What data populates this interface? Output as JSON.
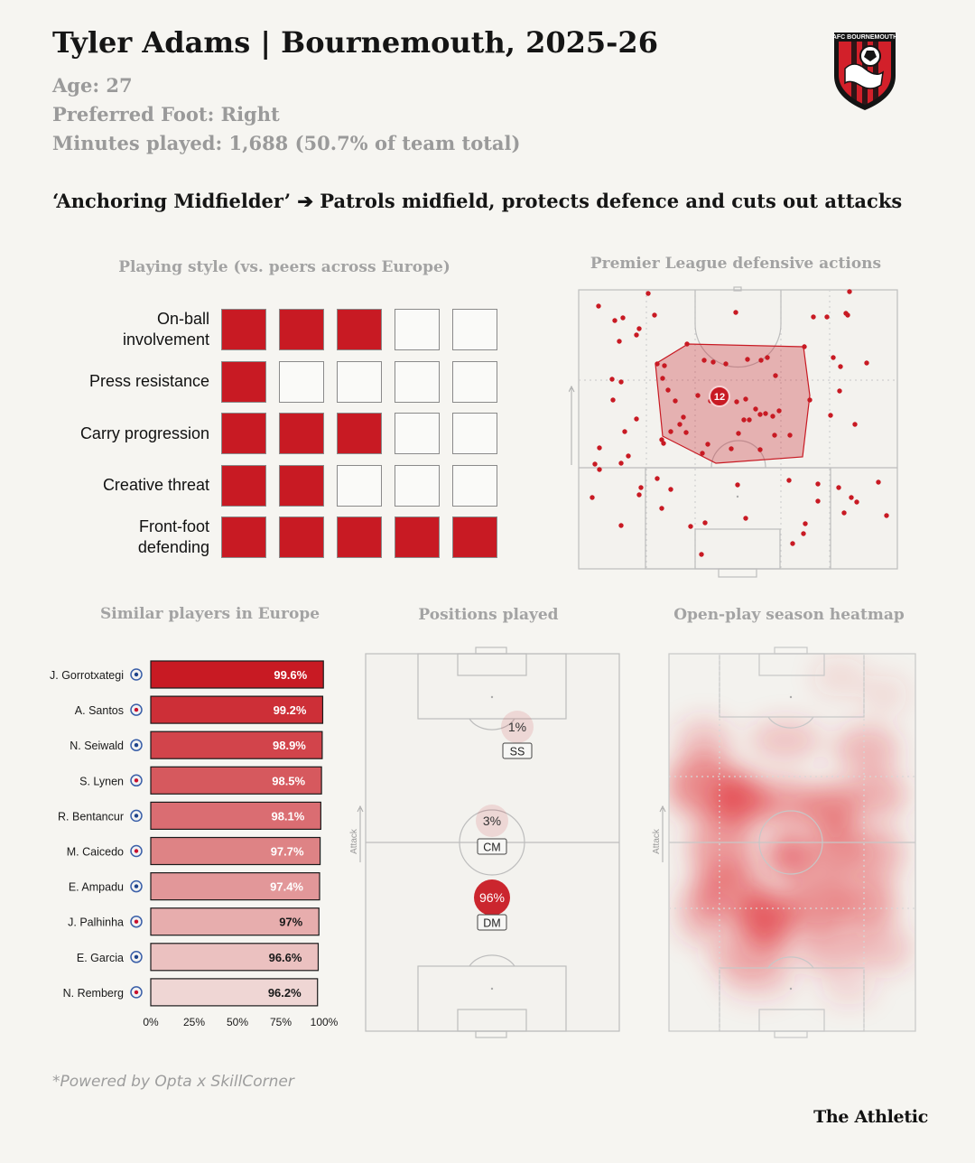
{
  "header": {
    "title": "Tyler Adams | Bournemouth, 2025-26",
    "age": "Age: 27",
    "foot": "Preferred Foot: Right",
    "minutes": "Minutes played: 1,688 (50.7% of team total)",
    "role": "‘Anchoring Midfielder’ ➔ Patrols midfield, protects defence and cuts out attacks",
    "crest_text": "AFC BOURNEMOUTH"
  },
  "colors": {
    "accent": "#c81a23",
    "pitch_line": "#b9b9b9",
    "muted": "#a3a3a3"
  },
  "playing_style": {
    "title": "Playing style (vs. peers across Europe)",
    "max": 5,
    "rows": [
      {
        "label": "On-ball\ninvolvement",
        "filled": 3
      },
      {
        "label": "Press resistance",
        "filled": 1
      },
      {
        "label": "Carry progression",
        "filled": 3
      },
      {
        "label": "Creative threat",
        "filled": 2
      },
      {
        "label": "Front-foot\ndefending",
        "filled": 5
      }
    ]
  },
  "defensive_actions": {
    "title": "Premier League defensive actions",
    "center_label": "12"
  },
  "chart_data": [
    {
      "type": "bar",
      "title": "Similar players in Europe",
      "orientation": "horizontal",
      "categories": [
        "J. Gorrotxategi",
        "A. Santos",
        "N. Seiwald",
        "S. Lynen",
        "R. Bentancur",
        "M. Caicedo",
        "E. Ampadu",
        "J. Palhinha",
        "E. Garcia",
        "N. Remberg"
      ],
      "club_icons": [
        "real-sociedad-crest-icon",
        "chelsea-crest-icon",
        "leipzig-crest-icon",
        "werder-crest-icon",
        "tottenham-crest-icon",
        "chelsea-crest-icon",
        "leeds-crest-icon",
        "tottenham-crest-icon",
        "barcelona-crest-icon",
        "hamburg-crest-icon"
      ],
      "values": [
        99.6,
        99.2,
        98.9,
        98.5,
        98.1,
        97.7,
        97.4,
        97,
        96.6,
        96.2
      ],
      "value_labels": [
        "99.6%",
        "99.2%",
        "98.9%",
        "98.5%",
        "98.1%",
        "97.7%",
        "97.4%",
        "97%",
        "96.6%",
        "96.2%"
      ],
      "xlim": [
        0,
        100
      ],
      "xticks": [
        "0%",
        "25%",
        "50%",
        "75%",
        "100%"
      ]
    },
    {
      "type": "scatter",
      "title": "Positions played",
      "axis_label": "Attack",
      "points": [
        {
          "position": "SS",
          "share": 1,
          "share_label": "1%"
        },
        {
          "position": "CM",
          "share": 3,
          "share_label": "3%"
        },
        {
          "position": "DM",
          "share": 96,
          "share_label": "96%"
        }
      ]
    },
    {
      "type": "heatmap",
      "title": "Open-play season heatmap",
      "axis_label": "Attack"
    }
  ],
  "footer": {
    "source": "*Powered by Opta x SkillCorner",
    "brand": "The Athletic"
  }
}
